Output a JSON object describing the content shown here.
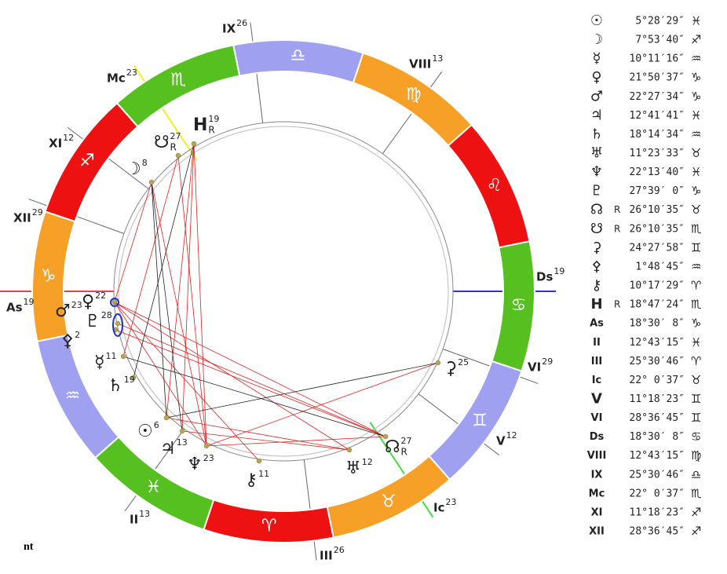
{
  "wheel": {
    "signs": [
      "♈",
      "♉",
      "♊",
      "♋",
      "♌",
      "♍",
      "♎",
      "♏",
      "♐",
      "♑",
      "♒",
      "♓"
    ],
    "houses": [
      {
        "label": "As",
        "degree": 19
      },
      {
        "label": "II",
        "degree": 13
      },
      {
        "label": "III",
        "degree": 26
      },
      {
        "label": "Ic",
        "degree": 23
      },
      {
        "label": "V",
        "degree": 12
      },
      {
        "label": "VI",
        "degree": 29
      },
      {
        "label": "Ds",
        "degree": 19
      },
      {
        "label": "VIII",
        "degree": 13
      },
      {
        "label": "IX",
        "degree": 26
      },
      {
        "label": "Mc",
        "degree": 23
      },
      {
        "label": "XI",
        "degree": 12
      },
      {
        "label": "XII",
        "degree": 29
      }
    ],
    "planets": [
      {
        "glyph": "☉",
        "degree": 6
      },
      {
        "glyph": "☽",
        "degree": 8
      },
      {
        "glyph": "☿",
        "degree": 11
      },
      {
        "glyph": "♀",
        "degree": 22
      },
      {
        "glyph": "♂",
        "degree": 23
      },
      {
        "glyph": "♃",
        "degree": 13
      },
      {
        "glyph": "♄",
        "degree": 19
      },
      {
        "glyph": "♅",
        "degree": 12
      },
      {
        "glyph": "♆",
        "degree": 23
      },
      {
        "glyph": "♇",
        "degree": 28
      },
      {
        "glyph": "☊",
        "degree": 27,
        "retro": "R"
      },
      {
        "glyph": "☋",
        "degree": 27,
        "retro": "R"
      },
      {
        "glyph": "⚳",
        "degree": 25
      },
      {
        "glyph": "⚴",
        "degree": 2
      },
      {
        "glyph": "⚷",
        "degree": 11
      },
      {
        "glyph": "H",
        "degree": 19,
        "retro": "R"
      }
    ]
  },
  "table": {
    "rows": [
      {
        "glyph": "☉",
        "position": "5°28′29″",
        "sign": "♓"
      },
      {
        "glyph": "☽",
        "position": "7°53′40″",
        "sign": "♐"
      },
      {
        "glyph": "☿",
        "position": "10°11′16″",
        "sign": "♒"
      },
      {
        "glyph": "♀",
        "position": "21°50′37″",
        "sign": "♑"
      },
      {
        "glyph": "♂",
        "position": "22°27′34″",
        "sign": "♑"
      },
      {
        "glyph": "♃",
        "position": "12°41′41″",
        "sign": "♓"
      },
      {
        "glyph": "♄",
        "position": "18°14′34″",
        "sign": "♒"
      },
      {
        "glyph": "♅",
        "position": "11°23′33″",
        "sign": "♉"
      },
      {
        "glyph": "♆",
        "position": "22°13′40″",
        "sign": "♓"
      },
      {
        "glyph": "♇",
        "position": "27°39′ 0″",
        "sign": "♑"
      },
      {
        "glyph": "☊",
        "retro": "R",
        "position": "26°10′35″",
        "sign": "♉"
      },
      {
        "glyph": "☋",
        "retro": "R",
        "position": "26°10′35″",
        "sign": "♏"
      },
      {
        "glyph": "⚳",
        "position": "24°27′58″",
        "sign": "♊"
      },
      {
        "glyph": "⚴",
        "position": "1°48′45″",
        "sign": "♒"
      },
      {
        "glyph": "⚷",
        "position": "10°17′29″",
        "sign": "♈"
      },
      {
        "glyph": "H",
        "retro": "R",
        "position": "18°47′24″",
        "sign": "♏"
      },
      {
        "glyph": "As",
        "position": "18°30′ 8″",
        "sign": "♑"
      },
      {
        "glyph": "II",
        "position": "12°43′15″",
        "sign": "♓"
      },
      {
        "glyph": "III",
        "position": "25°30′46″",
        "sign": "♈"
      },
      {
        "glyph": "Ic",
        "position": "22° 0′37″",
        "sign": "♉"
      },
      {
        "glyph": "V",
        "position": "11°18′23″",
        "sign": "♊"
      },
      {
        "glyph": "VI",
        "position": "28°36′45″",
        "sign": "♊"
      },
      {
        "glyph": "Ds",
        "position": "18°30′ 8″",
        "sign": "♋"
      },
      {
        "glyph": "VIII",
        "position": "12°43′15″",
        "sign": "♍"
      },
      {
        "glyph": "IX",
        "position": "25°30′46″",
        "sign": "♎"
      },
      {
        "glyph": "Mc",
        "position": "22° 0′37″",
        "sign": "♏"
      },
      {
        "glyph": "XI",
        "position": "11°18′23″",
        "sign": "♐"
      },
      {
        "glyph": "XII",
        "position": "28°36′45″",
        "sign": "♐"
      }
    ]
  },
  "footer": "nt"
}
